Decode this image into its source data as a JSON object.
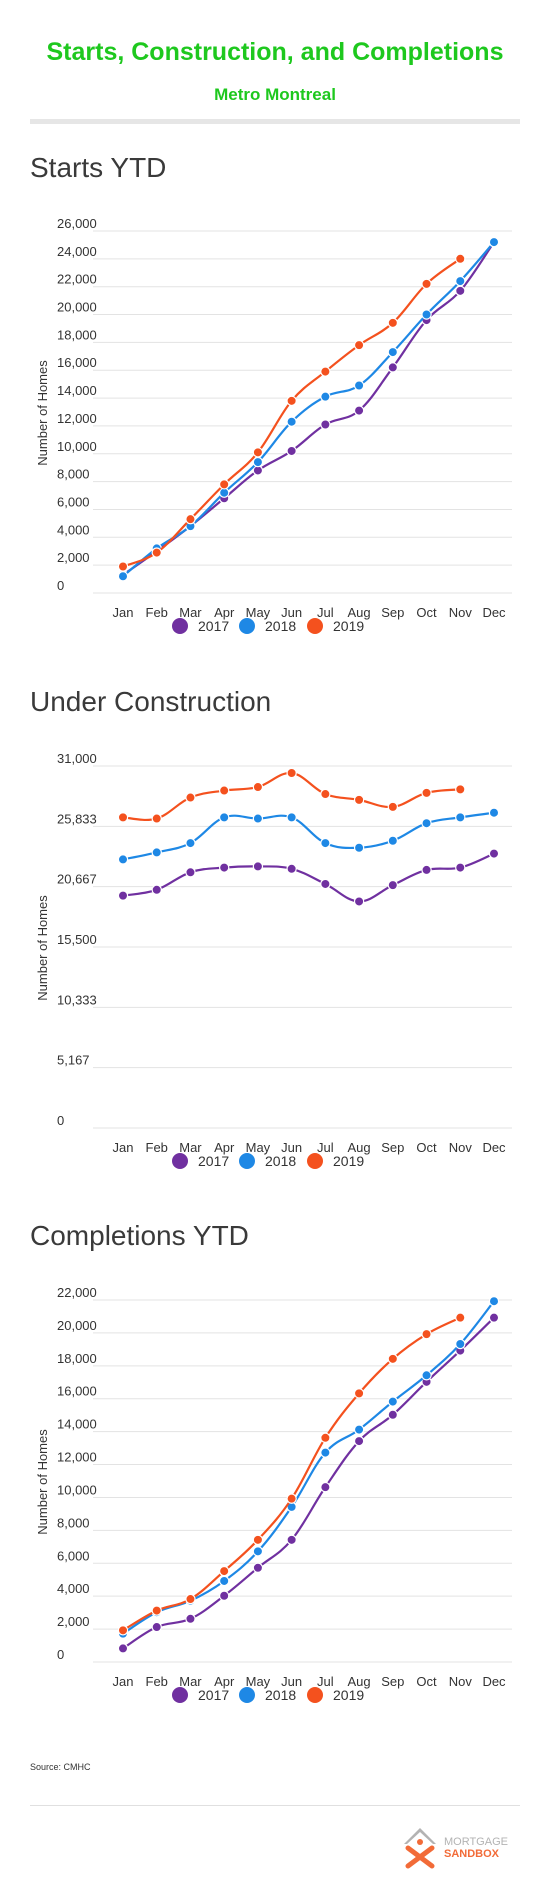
{
  "header": {
    "title": "Starts, Construction, and Completions",
    "subtitle": "Metro Montreal",
    "title_color": "#1ec81e"
  },
  "chart_data": [
    {
      "type": "line",
      "title": "Starts YTD",
      "ylabel": "Number of Homes",
      "xlabel": "",
      "categories": [
        "Jan",
        "Feb",
        "Mar",
        "Apr",
        "May",
        "Jun",
        "Jul",
        "Aug",
        "Sep",
        "Oct",
        "Nov",
        "Dec"
      ],
      "yticks": [
        0,
        2000,
        4000,
        6000,
        8000,
        10000,
        12000,
        14000,
        16000,
        18000,
        20000,
        22000,
        24000,
        26000
      ],
      "ytick_labels": [
        "0",
        "2,000",
        "4,000",
        "6,000",
        "8,000",
        "10,000",
        "12,000",
        "14,000",
        "16,000",
        "18,000",
        "20,000",
        "22,000",
        "24,000",
        "26,000"
      ],
      "ylim": [
        0,
        26000
      ],
      "grid": true,
      "legend": "bottom-center",
      "series": [
        {
          "name": "2017",
          "color": "#7030a0",
          "values": [
            800,
            2500,
            4300,
            6300,
            8300,
            9700,
            11600,
            12600,
            15700,
            19100,
            21200,
            24700
          ]
        },
        {
          "name": "2018",
          "color": "#1e88e5",
          "values": [
            700,
            2700,
            4300,
            6700,
            8900,
            11800,
            13600,
            14400,
            16800,
            19500,
            21900,
            24700
          ]
        },
        {
          "name": "2019",
          "color": "#f4511e",
          "values": [
            1400,
            2400,
            4800,
            7300,
            9600,
            13300,
            15400,
            17300,
            18900,
            21700,
            23500,
            null
          ]
        }
      ]
    },
    {
      "type": "line",
      "title": "Under Construction",
      "ylabel": "Number of Homes",
      "xlabel": "",
      "categories": [
        "Jan",
        "Feb",
        "Mar",
        "Apr",
        "May",
        "Jun",
        "Jul",
        "Aug",
        "Sep",
        "Oct",
        "Nov",
        "Dec"
      ],
      "yticks": [
        0,
        5167,
        10333,
        15500,
        20667,
        25833,
        31000
      ],
      "ytick_labels": [
        "0",
        "5,167",
        "10,333",
        "15,500",
        "20,667",
        "25,833",
        "31,000"
      ],
      "ylim": [
        0,
        31000
      ],
      "grid": true,
      "legend": "bottom-center",
      "series": [
        {
          "name": "2017",
          "color": "#7030a0",
          "values": [
            19300,
            19800,
            21300,
            21700,
            21800,
            21600,
            20300,
            18800,
            20200,
            21500,
            21700,
            22900
          ]
        },
        {
          "name": "2018",
          "color": "#1e88e5",
          "values": [
            22400,
            23000,
            23800,
            26000,
            25900,
            26000,
            23800,
            23400,
            24000,
            25500,
            26000,
            26400
          ]
        },
        {
          "name": "2019",
          "color": "#f4511e",
          "values": [
            26000,
            25900,
            27700,
            28300,
            28600,
            29800,
            28000,
            27500,
            26900,
            28100,
            28400,
            null
          ]
        }
      ]
    },
    {
      "type": "line",
      "title": "Completions YTD",
      "ylabel": "Number of Homes",
      "xlabel": "",
      "categories": [
        "Jan",
        "Feb",
        "Mar",
        "Apr",
        "May",
        "Jun",
        "Jul",
        "Aug",
        "Sep",
        "Oct",
        "Nov",
        "Dec"
      ],
      "yticks": [
        0,
        2000,
        4000,
        6000,
        8000,
        10000,
        12000,
        14000,
        16000,
        18000,
        20000,
        22000
      ],
      "ytick_labels": [
        "0",
        "2,000",
        "4,000",
        "6,000",
        "8,000",
        "10,000",
        "12,000",
        "14,000",
        "16,000",
        "18,000",
        "20,000",
        "22,000"
      ],
      "ylim": [
        0,
        22000
      ],
      "grid": true,
      "legend": "bottom-center",
      "series": [
        {
          "name": "2017",
          "color": "#7030a0",
          "values": [
            400,
            1700,
            2200,
            3600,
            5300,
            7000,
            10200,
            13000,
            14600,
            16600,
            18500,
            20500
          ]
        },
        {
          "name": "2018",
          "color": "#1e88e5",
          "values": [
            1300,
            2600,
            3300,
            4500,
            6300,
            9000,
            12300,
            13700,
            15400,
            17000,
            18900,
            21500
          ]
        },
        {
          "name": "2019",
          "color": "#f4511e",
          "values": [
            1500,
            2700,
            3400,
            5100,
            7000,
            9500,
            13200,
            15900,
            18000,
            19500,
            20500,
            null
          ]
        }
      ]
    }
  ],
  "footer": {
    "source": "Source: CMHC",
    "logo_line1": "MORTGAGE",
    "logo_line2": "SANDBOX",
    "logo_icon": "house-x-icon"
  }
}
